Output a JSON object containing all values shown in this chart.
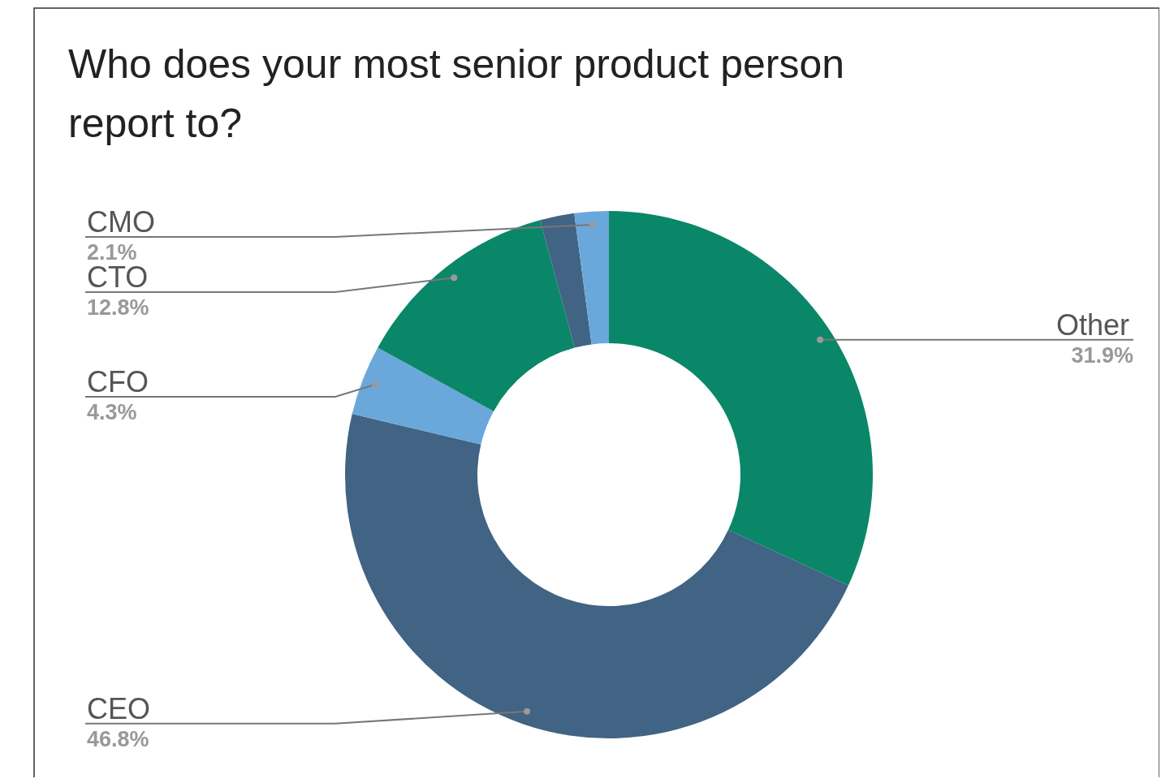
{
  "chart_data": {
    "type": "donut",
    "title": "Who does your most senior product person report to?",
    "categories": [
      "Other",
      "CEO",
      "CFO",
      "CTO",
      null,
      "CMO"
    ],
    "values": [
      31.9,
      46.8,
      4.3,
      12.8,
      2.1,
      2.1
    ],
    "value_labels": [
      "31.9%",
      "46.8%",
      "4.3%",
      "12.8%",
      null,
      "2.1%"
    ],
    "colors": [
      "#0a8769",
      "#416384",
      "#6aa8dc",
      "#0a8769",
      "#416384",
      "#6aa8dc"
    ]
  }
}
